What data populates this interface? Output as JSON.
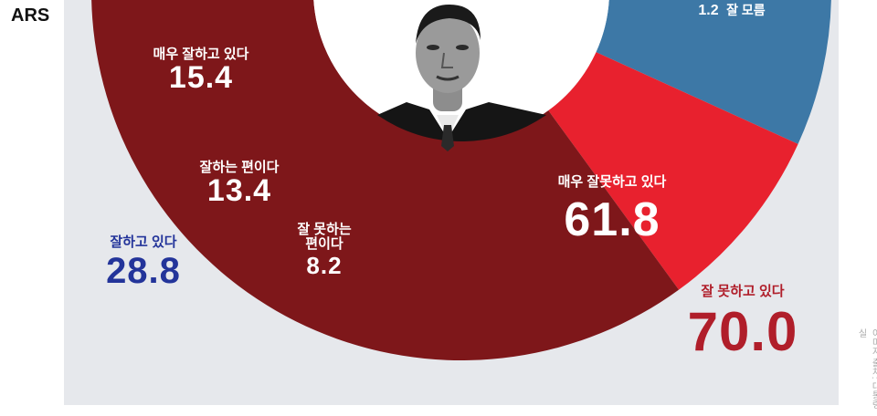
{
  "header": {
    "method": "ARS"
  },
  "chart_data": {
    "type": "donut",
    "series": [
      {
        "label": "매우 잘하고 있다",
        "value": 15.4,
        "color": "#2b3b8f",
        "group": "positive"
      },
      {
        "label": "잘하는 편이다",
        "value": 13.4,
        "color": "#3d78a6",
        "group": "positive"
      },
      {
        "label": "잘 못하는 편이다",
        "value": 8.2,
        "color": "#e8212e",
        "group": "negative"
      },
      {
        "label": "매우 잘못하고 있다",
        "value": 61.8,
        "color": "#7e171a",
        "group": "negative"
      },
      {
        "label": "잘 모름",
        "value": 1.2,
        "color": "#a0877c",
        "group": "unknown"
      }
    ],
    "totals": [
      {
        "label": "잘하고 있다",
        "value": 28.8,
        "color": "#23349a"
      },
      {
        "label": "잘 못하고 있다",
        "value": 70.0,
        "color": "#b01e2a"
      }
    ]
  },
  "labels": {
    "very_good_caption": "매우 잘하고 있다",
    "very_good_value": "15.4",
    "good_caption": "잘하는 편이다",
    "good_value": "13.4",
    "bad_caption_1": "잘 못하는",
    "bad_caption_2": "편이다",
    "bad_value": "8.2",
    "very_bad_caption": "매우 잘못하고 있다",
    "very_bad_value": "61.8",
    "unknown_value": "1.2",
    "unknown_caption": "잘 모름",
    "total_good_caption": "잘하고 있다",
    "total_good_value": "28.8",
    "total_bad_caption": "잘 못하고 있다",
    "total_bad_value": "70.0"
  },
  "credit": "이미지 출처: 대통령실"
}
